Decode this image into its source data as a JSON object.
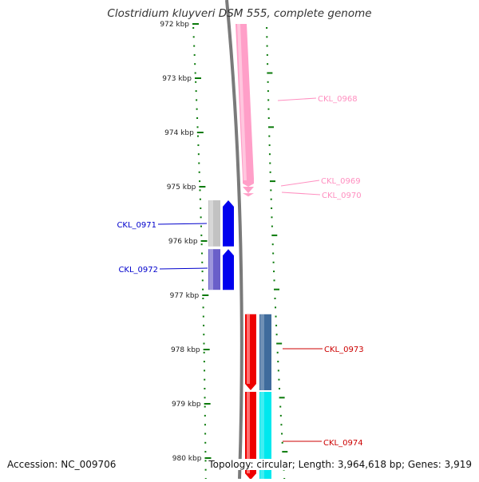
{
  "title": "Clostridium kluyveri DSM 555, complete genome",
  "footer": {
    "accession": "Accession: NC_009706",
    "summary": "Topology: circular; Length: 3,964,618 bp; Genes: 3,919"
  },
  "axis": {
    "unit": "kbp",
    "ticks": [
      972,
      973,
      974,
      975,
      976,
      977,
      978,
      979,
      980
    ],
    "range": [
      971.9,
      980.4
    ],
    "tick_color": "#0a7a0a"
  },
  "genes": [
    {
      "name": "CKL_0968",
      "start": 972.0,
      "end": 975.0,
      "strand": "reverse",
      "color": "#ff9fc8",
      "label_color": "#ff8fc0"
    },
    {
      "name": "CKL_0969",
      "start": 975.0,
      "end": 975.12,
      "strand": "reverse",
      "color": "#ff9fc8",
      "label_color": "#ff8fc0"
    },
    {
      "name": "CKL_0970",
      "start": 975.12,
      "end": 975.18,
      "strand": "reverse",
      "color": "#ff9fc8",
      "label_color": "#ff8fc0"
    },
    {
      "name": "CKL_0971",
      "start": 975.25,
      "end": 976.1,
      "strand": "forward",
      "color": "#0000ee",
      "side_color": "#c2c2c2",
      "label_color": "#0000cc"
    },
    {
      "name": "CKL_0972",
      "start": 976.15,
      "end": 976.9,
      "strand": "forward",
      "color": "#0000ee",
      "side_color": "#6a5fc9",
      "label_color": "#0000cc"
    },
    {
      "name": "CKL_0973",
      "start": 977.35,
      "end": 978.75,
      "strand": "reverse",
      "color": "#ee0000",
      "side_color": "#3f6b9c",
      "label_color": "#cc0000"
    },
    {
      "name": "CKL_0974",
      "start": 978.78,
      "end": 980.4,
      "strand": "reverse",
      "color": "#ee0000",
      "side_color": "#00e8ee",
      "label_color": "#cc0000"
    }
  ]
}
